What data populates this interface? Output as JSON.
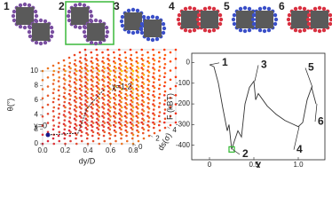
{
  "panel_labels": [
    "1",
    "2",
    "3",
    "4",
    "5",
    "6"
  ],
  "chart_data": [
    {
      "type": "scatter3d",
      "ylabel": "θ(°)",
      "xlabel": "dy/D",
      "zlabel": "ds(σ)",
      "ylim": [
        0,
        10
      ],
      "yticks": [
        0,
        2,
        4,
        6,
        8,
        10
      ],
      "xlim": [
        0,
        0.8
      ],
      "xticks": [
        {
          "value": 0,
          "label": "0.0"
        },
        0.2,
        0.4,
        0.6,
        0.8
      ],
      "zlim": [
        0,
        5
      ],
      "zticks": [
        0,
        2,
        4
      ],
      "annotations": [
        "χ=0",
        "χ=1.2"
      ]
    },
    {
      "type": "line",
      "xlabel": "χ",
      "ylabel": "F (kBT)",
      "xlim": [
        -0.2,
        1.3
      ],
      "xticks": [
        0,
        0.5,
        {
          "value": 1,
          "label": "1.0"
        }
      ],
      "ylim": [
        -470,
        45
      ],
      "yticks": [
        -400,
        -300,
        -200,
        -100,
        0
      ],
      "series": [
        {
          "color": "#333333",
          "x": [
            0,
            0.05,
            0.1,
            0.15,
            0.2,
            0.22,
            0.25,
            0.28,
            0.32,
            0.36,
            0.4,
            0.45,
            0.5,
            0.52,
            0.55,
            0.65,
            0.75,
            0.85,
            0.95,
            1.0,
            1.05,
            1.1,
            1.15,
            1.2
          ],
          "values": [
            -10,
            -20,
            -100,
            -220,
            -330,
            -300,
            -420,
            -380,
            -330,
            -360,
            -200,
            -120,
            -90,
            -180,
            -150,
            -210,
            -250,
            -280,
            -300,
            -310,
            -290,
            -180,
            -120,
            -200
          ]
        }
      ],
      "highlight_color": "#2eb82e",
      "annotations": [
        "1",
        "2",
        "3",
        "4",
        "5",
        "6"
      ]
    }
  ]
}
